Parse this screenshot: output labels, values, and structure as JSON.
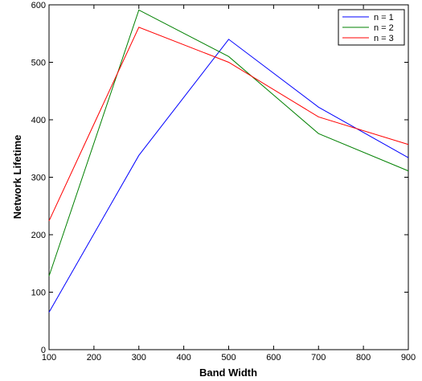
{
  "chart_data": {
    "type": "line",
    "title": "",
    "xlabel": "Band Width",
    "ylabel": "Network Lifetime",
    "xlim": [
      100,
      900
    ],
    "ylim": [
      0,
      600
    ],
    "xticks": [
      100,
      200,
      300,
      400,
      500,
      600,
      700,
      800,
      900
    ],
    "yticks": [
      0,
      100,
      200,
      300,
      400,
      500,
      600
    ],
    "grid": false,
    "legend_position": "top-right",
    "x": [
      100,
      300,
      500,
      700,
      900
    ],
    "series": [
      {
        "name": "n = 1",
        "color": "#0000ff",
        "values": [
          65,
          338,
          540,
          422,
          334
        ]
      },
      {
        "name": "n = 2",
        "color": "#008000",
        "values": [
          128,
          591,
          510,
          376,
          311
        ]
      },
      {
        "name": "n = 3",
        "color": "#ff0000",
        "values": [
          224,
          561,
          500,
          405,
          357
        ]
      }
    ]
  }
}
